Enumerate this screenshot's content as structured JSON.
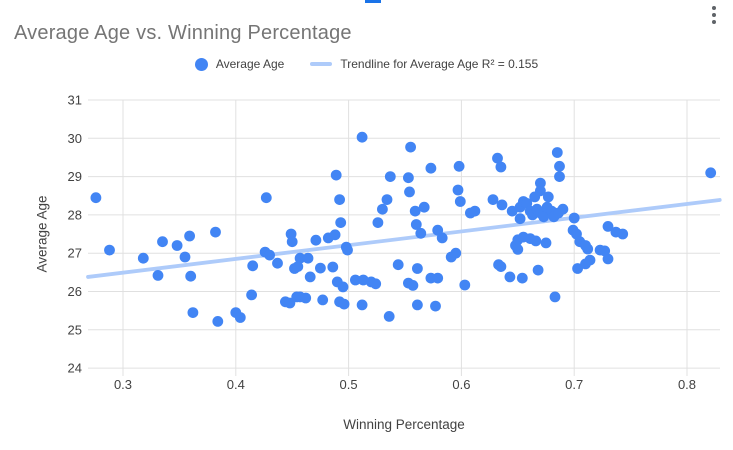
{
  "accent_color": "#1a73e8",
  "icons": {
    "more_options": "kebab-menu-icon"
  },
  "header": {
    "title": "Average Age vs. Winning Percentage",
    "title_color": "#757575"
  },
  "legend": {
    "items": [
      {
        "type": "point",
        "label": "Average Age",
        "color": "#4285f4"
      },
      {
        "type": "line",
        "label": "Trendline for Average Age R² = 0.155",
        "color": "#aecbfa"
      }
    ]
  },
  "chart_data": {
    "type": "scatter",
    "title": "Average Age vs. Winning Percentage",
    "xlabel": "Winning Percentage",
    "ylabel": "Average Age",
    "xlim": [
      0.269,
      0.829
    ],
    "ylim": [
      24,
      31
    ],
    "x_ticks": [
      0.3,
      0.4,
      0.5,
      0.6,
      0.7,
      0.8
    ],
    "x_tick_labels": [
      "0.3",
      "0.4",
      "0.5",
      "0.6",
      "0.7",
      "0.8"
    ],
    "y_ticks": [
      24,
      25,
      26,
      27,
      28,
      29,
      30,
      31
    ],
    "y_tick_labels": [
      "24",
      "25",
      "26",
      "27",
      "28",
      "29",
      "30",
      "31"
    ],
    "grid": true,
    "point_color": "#4285f4",
    "grid_color": "#e0e0e0",
    "tick_label_color": "#424242",
    "series": [
      {
        "name": "Average Age",
        "color": "#4285f4",
        "points": [
          [
            0.276,
            28.45
          ],
          [
            0.288,
            27.08
          ],
          [
            0.318,
            26.87
          ],
          [
            0.331,
            26.42
          ],
          [
            0.335,
            27.3
          ],
          [
            0.348,
            27.2
          ],
          [
            0.355,
            26.9
          ],
          [
            0.359,
            27.45
          ],
          [
            0.36,
            26.4
          ],
          [
            0.362,
            25.45
          ],
          [
            0.382,
            27.55
          ],
          [
            0.384,
            25.22
          ],
          [
            0.4,
            25.45
          ],
          [
            0.404,
            25.32
          ],
          [
            0.414,
            25.91
          ],
          [
            0.415,
            26.67
          ],
          [
            0.427,
            28.45
          ],
          [
            0.426,
            27.03
          ],
          [
            0.43,
            26.95
          ],
          [
            0.437,
            26.74
          ],
          [
            0.444,
            25.73
          ],
          [
            0.448,
            25.7
          ],
          [
            0.449,
            27.5
          ],
          [
            0.45,
            27.3
          ],
          [
            0.452,
            26.6
          ],
          [
            0.454,
            25.86
          ],
          [
            0.512,
            30.03
          ],
          [
            0.555,
            29.77
          ],
          [
            0.573,
            29.22
          ],
          [
            0.598,
            29.27
          ],
          [
            0.489,
            29.04
          ],
          [
            0.537,
            29.0
          ],
          [
            0.553,
            28.97
          ],
          [
            0.554,
            28.6
          ],
          [
            0.492,
            28.4
          ],
          [
            0.534,
            28.4
          ],
          [
            0.597,
            28.65
          ],
          [
            0.599,
            28.35
          ],
          [
            0.628,
            28.4
          ],
          [
            0.53,
            28.15
          ],
          [
            0.559,
            28.1
          ],
          [
            0.567,
            28.2
          ],
          [
            0.608,
            28.05
          ],
          [
            0.612,
            28.1
          ],
          [
            0.526,
            27.8
          ],
          [
            0.493,
            27.8
          ],
          [
            0.56,
            27.75
          ],
          [
            0.564,
            27.52
          ],
          [
            0.579,
            27.6
          ],
          [
            0.583,
            27.4
          ],
          [
            0.471,
            27.34
          ],
          [
            0.482,
            27.4
          ],
          [
            0.488,
            27.48
          ],
          [
            0.498,
            27.16
          ],
          [
            0.499,
            27.08
          ],
          [
            0.457,
            26.87
          ],
          [
            0.464,
            26.87
          ],
          [
            0.455,
            26.65
          ],
          [
            0.475,
            26.61
          ],
          [
            0.466,
            26.38
          ],
          [
            0.486,
            26.64
          ],
          [
            0.544,
            26.7
          ],
          [
            0.561,
            26.6
          ],
          [
            0.591,
            26.9
          ],
          [
            0.595,
            27.0
          ],
          [
            0.633,
            26.7
          ],
          [
            0.49,
            26.25
          ],
          [
            0.495,
            26.12
          ],
          [
            0.506,
            26.3
          ],
          [
            0.513,
            26.3
          ],
          [
            0.52,
            26.25
          ],
          [
            0.524,
            26.2
          ],
          [
            0.553,
            26.22
          ],
          [
            0.557,
            26.16
          ],
          [
            0.573,
            26.35
          ],
          [
            0.579,
            26.35
          ],
          [
            0.603,
            26.17
          ],
          [
            0.457,
            25.86
          ],
          [
            0.462,
            25.83
          ],
          [
            0.477,
            25.78
          ],
          [
            0.492,
            25.73
          ],
          [
            0.496,
            25.67
          ],
          [
            0.512,
            25.65
          ],
          [
            0.561,
            25.65
          ],
          [
            0.577,
            25.62
          ],
          [
            0.536,
            25.35
          ],
          [
            0.632,
            29.48
          ],
          [
            0.635,
            29.25
          ],
          [
            0.685,
            29.63
          ],
          [
            0.687,
            29.27
          ],
          [
            0.687,
            29.0
          ],
          [
            0.67,
            28.83
          ],
          [
            0.67,
            28.63
          ],
          [
            0.821,
            29.1
          ],
          [
            0.665,
            28.47
          ],
          [
            0.677,
            28.47
          ],
          [
            0.636,
            28.26
          ],
          [
            0.645,
            28.1
          ],
          [
            0.652,
            28.2
          ],
          [
            0.655,
            28.35
          ],
          [
            0.658,
            28.3
          ],
          [
            0.661,
            28.1
          ],
          [
            0.663,
            28.0
          ],
          [
            0.667,
            28.15
          ],
          [
            0.67,
            28.05
          ],
          [
            0.673,
            27.95
          ],
          [
            0.676,
            28.2
          ],
          [
            0.68,
            28.1
          ],
          [
            0.682,
            27.95
          ],
          [
            0.686,
            28.05
          ],
          [
            0.69,
            28.15
          ],
          [
            0.652,
            27.9
          ],
          [
            0.7,
            27.92
          ],
          [
            0.699,
            27.6
          ],
          [
            0.702,
            27.5
          ],
          [
            0.73,
            27.7
          ],
          [
            0.737,
            27.55
          ],
          [
            0.743,
            27.5
          ],
          [
            0.65,
            27.35
          ],
          [
            0.655,
            27.42
          ],
          [
            0.661,
            27.38
          ],
          [
            0.666,
            27.32
          ],
          [
            0.648,
            27.2
          ],
          [
            0.65,
            27.1
          ],
          [
            0.675,
            27.27
          ],
          [
            0.705,
            27.3
          ],
          [
            0.71,
            27.2
          ],
          [
            0.712,
            27.11
          ],
          [
            0.723,
            27.08
          ],
          [
            0.727,
            27.06
          ],
          [
            0.714,
            26.82
          ],
          [
            0.73,
            26.85
          ],
          [
            0.703,
            26.6
          ],
          [
            0.71,
            26.72
          ],
          [
            0.635,
            26.65
          ],
          [
            0.643,
            26.38
          ],
          [
            0.654,
            26.35
          ],
          [
            0.668,
            26.56
          ],
          [
            0.683,
            25.86
          ]
        ]
      }
    ],
    "trendline": {
      "label": "Trendline for Average Age R² = 0.155",
      "r_squared": 0.155,
      "color": "#aecbfa",
      "start": [
        0.269,
        26.38
      ],
      "end": [
        0.829,
        28.39
      ]
    },
    "legend_position": "top"
  }
}
